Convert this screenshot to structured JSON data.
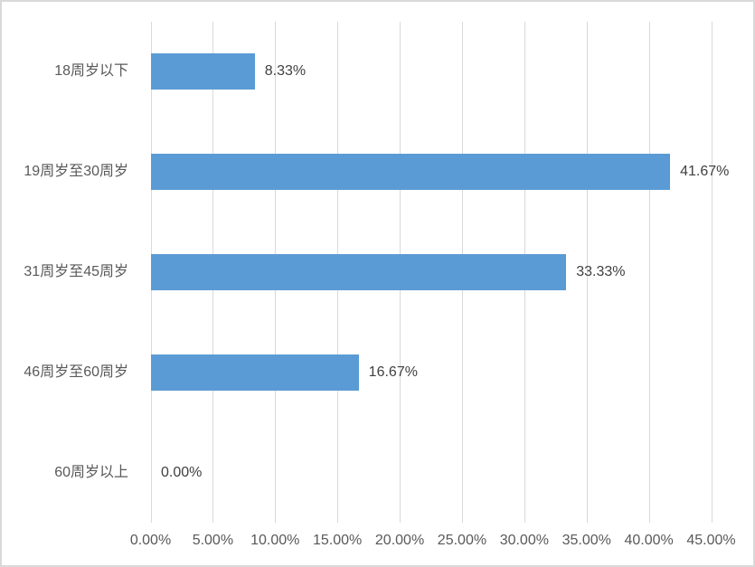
{
  "chart_data": {
    "type": "bar",
    "orientation": "horizontal",
    "title": "",
    "xlabel": "",
    "ylabel": "",
    "categories": [
      "18周岁以下",
      "19周岁至30周岁",
      "31周岁至45周岁",
      "46周岁至60周岁",
      "60周岁以上"
    ],
    "values": [
      8.33,
      41.67,
      33.33,
      16.67,
      0.0
    ],
    "data_labels": [
      "8.33%",
      "41.67%",
      "33.33%",
      "16.67%",
      "0.00%"
    ],
    "x_ticks": [
      "0.00%",
      "5.00%",
      "10.00%",
      "15.00%",
      "20.00%",
      "25.00%",
      "30.00%",
      "35.00%",
      "40.00%",
      "45.00%"
    ],
    "x_tick_values": [
      0,
      5,
      10,
      15,
      20,
      25,
      30,
      35,
      40,
      45
    ],
    "xlim": [
      0,
      45
    ],
    "grid": "vertical-major",
    "legend": "none",
    "colors": {
      "bar": "#5b9bd5",
      "gridline": "#d9d9d9",
      "category_label": "#595959",
      "tick_label": "#595959",
      "data_label": "#404040",
      "background": "#ffffff",
      "frame_border": "#d9d9d9"
    }
  }
}
